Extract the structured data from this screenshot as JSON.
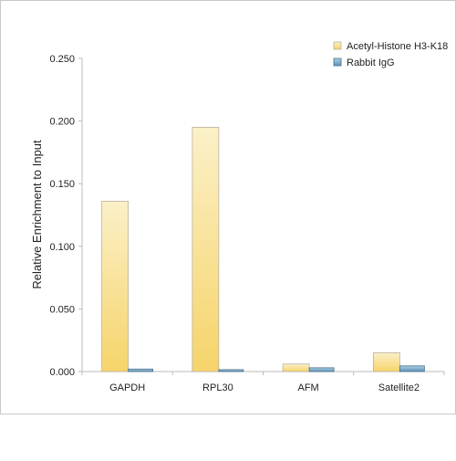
{
  "chart_data": {
    "type": "bar",
    "title": "",
    "xlabel": "",
    "ylabel": "Relative Enrichment to Input",
    "ylim": [
      0,
      0.25
    ],
    "yticks": [
      "0.000",
      "0.050",
      "0.100",
      "0.150",
      "0.200",
      "0.250"
    ],
    "ytick_values": [
      0,
      0.05,
      0.1,
      0.15,
      0.2,
      0.25
    ],
    "categories": [
      "GAPDH",
      "RPL30",
      "AFM",
      "Satellite2"
    ],
    "series": [
      {
        "name": "Acetyl-Histone H3-K18",
        "values": [
          0.136,
          0.195,
          0.006,
          0.015
        ],
        "color_top": "#fbf0c8",
        "color_bottom": "#f6d46a",
        "stroke": "#b9b2a0"
      },
      {
        "name": "Rabbit IgG",
        "values": [
          0.002,
          0.0015,
          0.003,
          0.0045
        ],
        "color_top": "#a9cfe6",
        "color_bottom": "#5d93b8",
        "stroke": "#4a6f88"
      }
    ],
    "legend_position": "top-right",
    "grid": false,
    "colors": {
      "frame": "#c8c8c8",
      "axis": "#bbbbbb"
    }
  }
}
